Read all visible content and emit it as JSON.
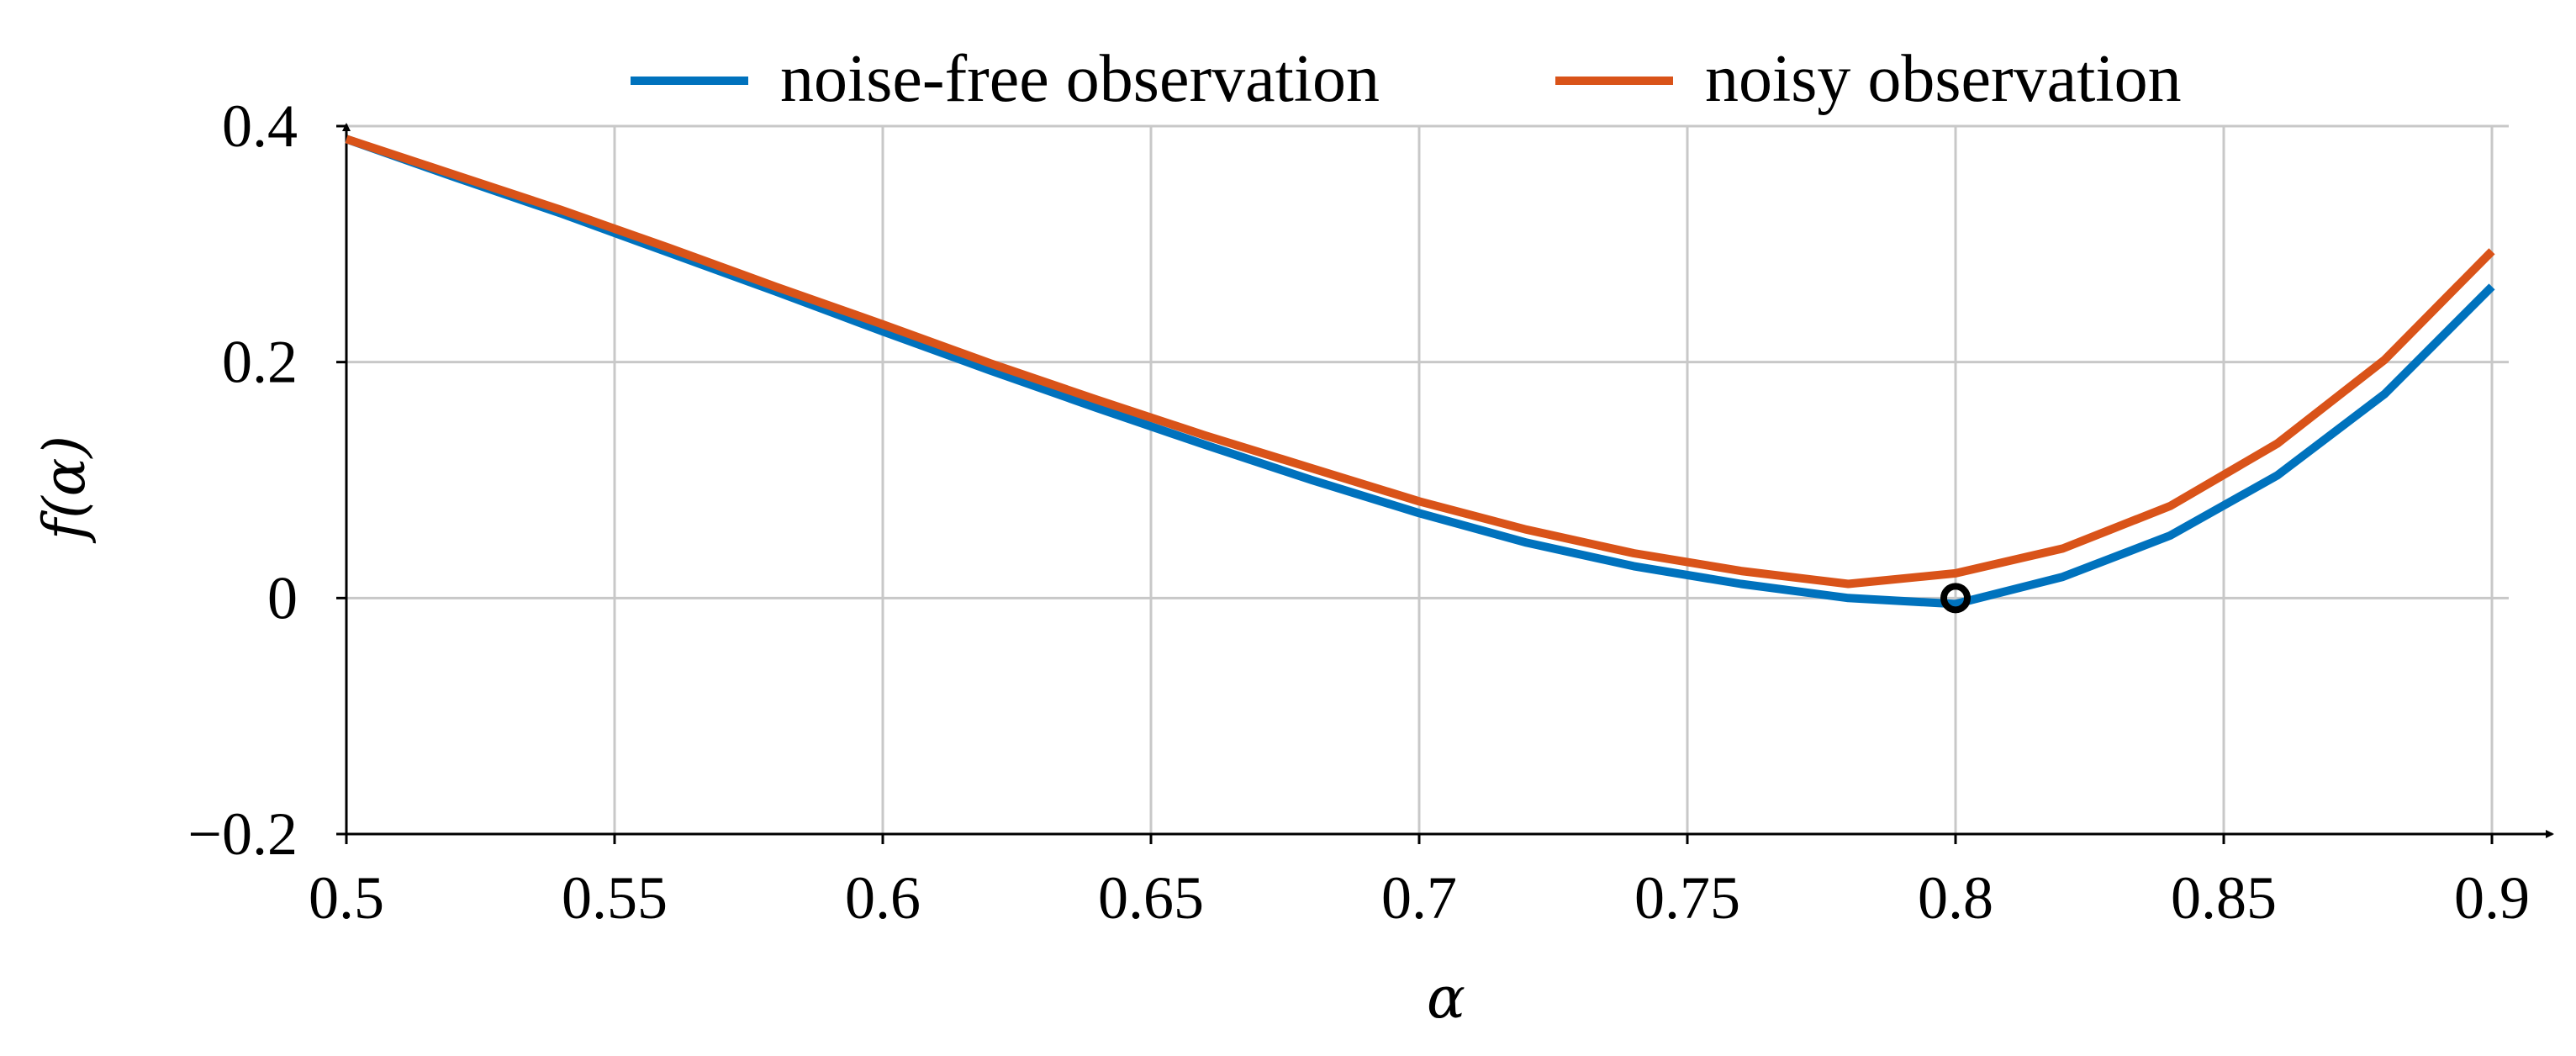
{
  "chart_data": {
    "type": "line",
    "title": "",
    "xlabel": "α",
    "ylabel": "f(α)",
    "xlim": [
      0.5,
      0.9
    ],
    "ylim": [
      -0.2,
      0.4
    ],
    "xticks": [
      0.5,
      0.55,
      0.6,
      0.65,
      0.7,
      0.75,
      0.8,
      0.85,
      0.9
    ],
    "xtick_labels": [
      "0.5",
      "0.55",
      "0.6",
      "0.65",
      "0.7",
      "0.75",
      "0.8",
      "0.85",
      "0.9"
    ],
    "yticks": [
      -0.2,
      0,
      0.2,
      0.4
    ],
    "ytick_labels": [
      "−0.2",
      "0",
      "0.2",
      "0.4"
    ],
    "grid": true,
    "legend_position": "top-center",
    "x": [
      0.5,
      0.52,
      0.54,
      0.56,
      0.58,
      0.6,
      0.62,
      0.64,
      0.66,
      0.68,
      0.7,
      0.72,
      0.74,
      0.76,
      0.78,
      0.8,
      0.82,
      0.84,
      0.86,
      0.88,
      0.9
    ],
    "series": [
      {
        "name": "noise-free observation",
        "color": "#0072BD",
        "values": [
          0.389,
          0.357,
          0.326,
          0.293,
          0.26,
          0.226,
          0.193,
          0.161,
          0.13,
          0.1,
          0.072,
          0.047,
          0.027,
          0.012,
          0.0,
          -0.005,
          0.018,
          0.053,
          0.104,
          0.173,
          0.264
        ]
      },
      {
        "name": "noisy observation",
        "color": "#D95319",
        "values": [
          0.389,
          0.359,
          0.329,
          0.297,
          0.264,
          0.232,
          0.199,
          0.168,
          0.138,
          0.11,
          0.082,
          0.058,
          0.038,
          0.023,
          0.012,
          0.021,
          0.042,
          0.078,
          0.131,
          0.202,
          0.294
        ]
      }
    ],
    "marker": {
      "x": 0.8,
      "y": 0.0,
      "label": ""
    }
  }
}
